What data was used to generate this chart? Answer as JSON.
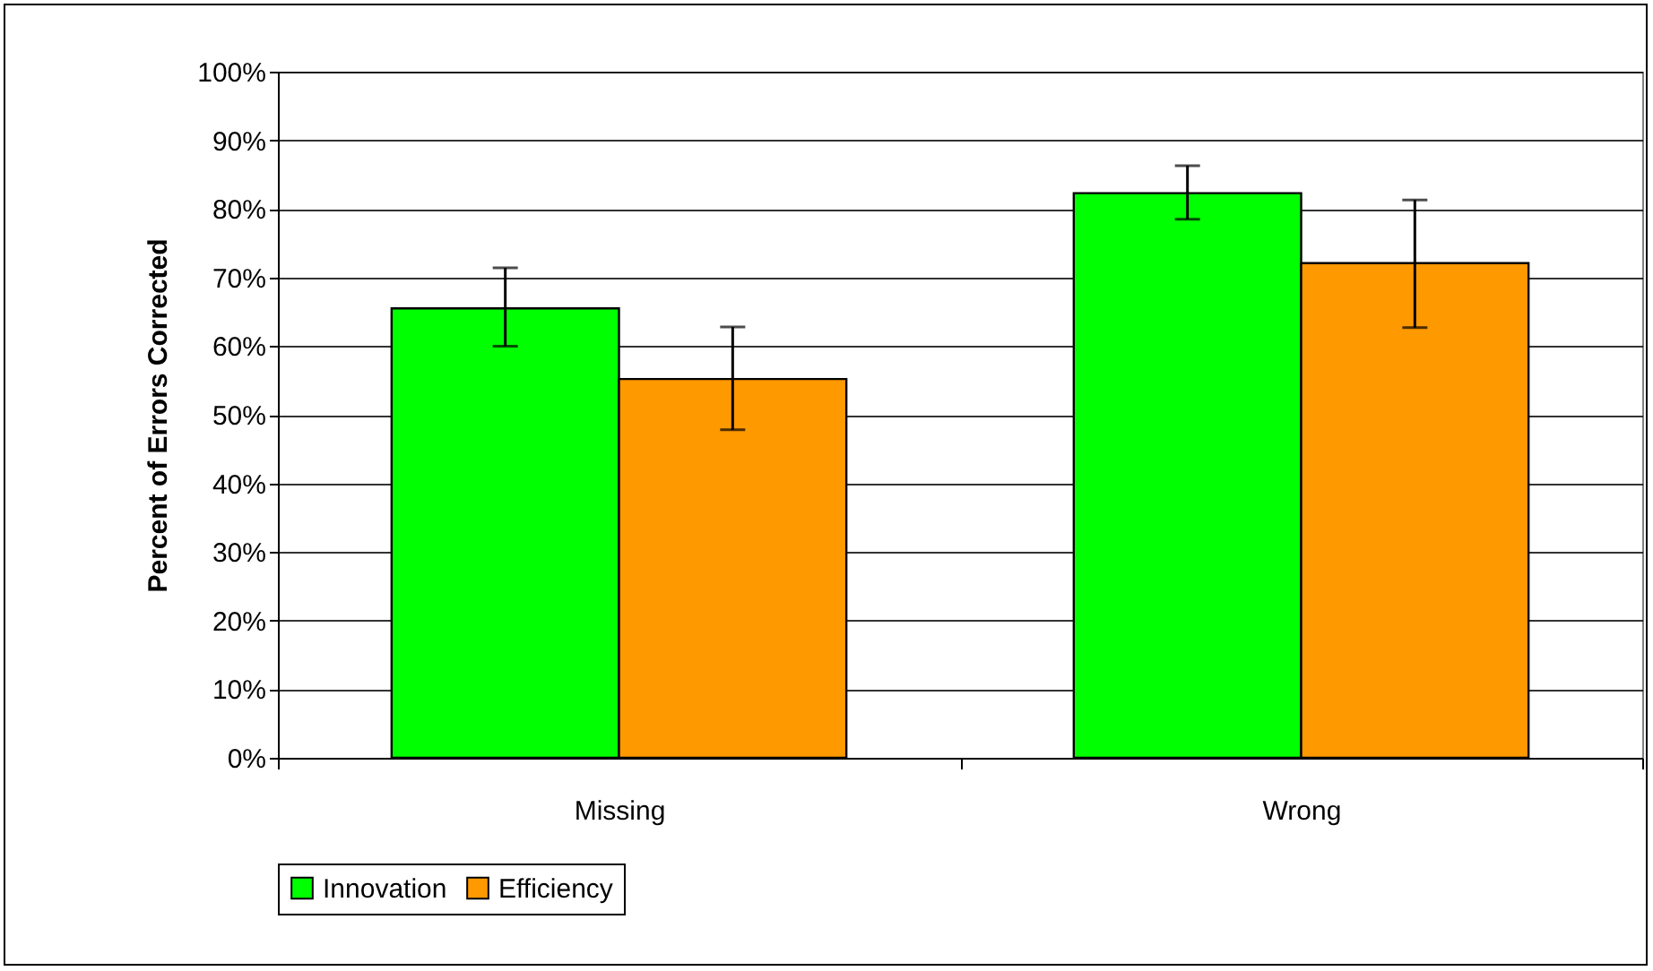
{
  "chart_data": {
    "type": "bar",
    "ylabel": "Percent of Errors Corrected",
    "categories": [
      "Missing",
      "Wrong"
    ],
    "series": [
      {
        "name": "Innovation",
        "color": "#00ff00",
        "values": [
          65.5,
          82.3
        ],
        "errors": [
          [
            60,
            71.4
          ],
          [
            78.5,
            86.3
          ]
        ]
      },
      {
        "name": "Efficiency",
        "color": "#ff9900",
        "values": [
          55.2,
          72.1
        ],
        "errors": [
          [
            47.8,
            62.8
          ],
          [
            62.7,
            81.3
          ]
        ]
      }
    ],
    "ylim": [
      0,
      100
    ],
    "yticks": [
      {
        "value": 0,
        "label": "0%"
      },
      {
        "value": 10,
        "label": "10%"
      },
      {
        "value": 20,
        "label": "20%"
      },
      {
        "value": 30,
        "label": "30%"
      },
      {
        "value": 40,
        "label": "40%"
      },
      {
        "value": 50,
        "label": "50%"
      },
      {
        "value": 60,
        "label": "60%"
      },
      {
        "value": 70,
        "label": "70%"
      },
      {
        "value": 80,
        "label": "80%"
      },
      {
        "value": 90,
        "label": "90%"
      },
      {
        "value": 100,
        "label": "100%"
      }
    ],
    "grid": "y",
    "legend": "bottom"
  }
}
